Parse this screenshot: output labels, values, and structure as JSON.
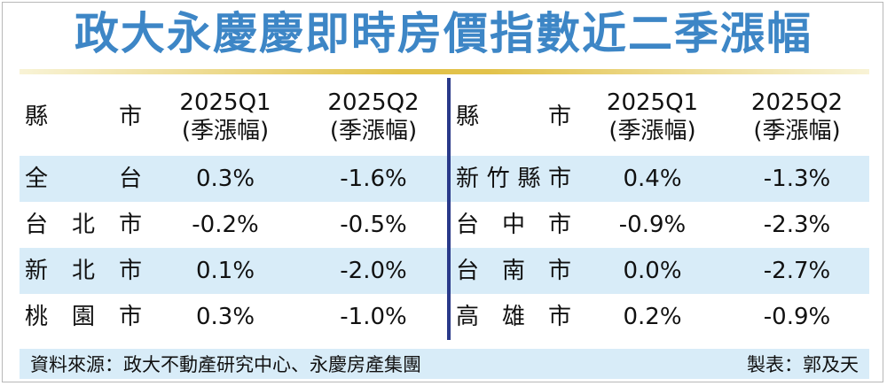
{
  "title": "政大永慶慶即時房價指數近二季漲幅",
  "header": {
    "county_label": [
      "縣",
      "市"
    ],
    "q1_line1": "2025Q1",
    "q1_line2": "(季漲幅)",
    "q2_line1": "2025Q2",
    "q2_line2": "(季漲幅)"
  },
  "rows": [
    {
      "left": {
        "name": [
          "全",
          "台"
        ],
        "q1": "0.3%",
        "q2": "-1.6%"
      },
      "right": {
        "name": [
          "新",
          "竹",
          "縣",
          "市"
        ],
        "q1": "0.4%",
        "q2": "-1.3%"
      }
    },
    {
      "left": {
        "name": [
          "台",
          "北",
          "市"
        ],
        "q1": "-0.2%",
        "q2": "-0.5%"
      },
      "right": {
        "name": [
          "台",
          "中",
          "市"
        ],
        "q1": "-0.9%",
        "q2": "-2.3%"
      }
    },
    {
      "left": {
        "name": [
          "新",
          "北",
          "市"
        ],
        "q1": "0.1%",
        "q2": "-2.0%"
      },
      "right": {
        "name": [
          "台",
          "南",
          "市"
        ],
        "q1": "0.0%",
        "q2": "-2.7%"
      }
    },
    {
      "left": {
        "name": [
          "桃",
          "園",
          "市"
        ],
        "q1": "0.3%",
        "q2": "-1.0%"
      },
      "right": {
        "name": [
          "高",
          "雄",
          "市"
        ],
        "q1": "0.2%",
        "q2": "-0.9%"
      }
    }
  ],
  "footer": {
    "source": "資料來源：政大不動產研究中心、永慶房產集團",
    "credit": "製表：郭及天"
  },
  "colors": {
    "title": "#3d86c6",
    "row_shade": "#d8ecf8",
    "divider": "#2a3a8a",
    "rule": "#e2c24a"
  }
}
